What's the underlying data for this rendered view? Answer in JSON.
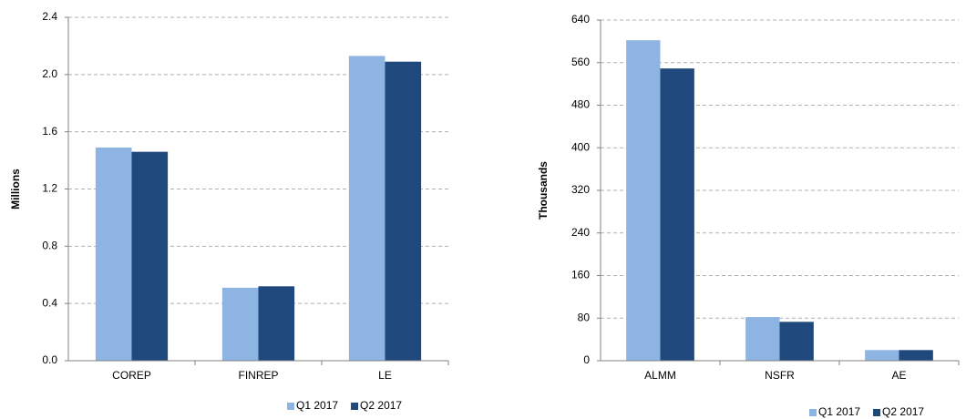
{
  "chart_data": [
    {
      "type": "bar",
      "y_label": "Millions",
      "categories": [
        "COREP",
        "FINREP",
        "LE"
      ],
      "series": [
        {
          "name": "Q1 2017",
          "color": "#8eb4e3",
          "values": [
            1.49,
            0.51,
            2.13
          ]
        },
        {
          "name": "Q2 2017",
          "color": "#1f497d",
          "values": [
            1.46,
            0.52,
            2.09
          ]
        }
      ],
      "ylim": [
        0,
        2.4
      ],
      "yticks": [
        {
          "value": 0,
          "label": "0.0"
        },
        0.4,
        0.8,
        1.2,
        1.6,
        {
          "value": 2,
          "label": "2.0"
        },
        2.4
      ],
      "grid": true
    },
    {
      "type": "bar",
      "y_label": "Thousands",
      "categories": [
        "ALMM",
        "NSFR",
        "AE"
      ],
      "series": [
        {
          "name": "Q1 2017",
          "color": "#8eb4e3",
          "values": [
            602,
            82,
            20
          ]
        },
        {
          "name": "Q2 2017",
          "color": "#1f497d",
          "values": [
            549,
            73,
            20
          ]
        }
      ],
      "ylim": [
        0,
        640
      ],
      "yticks": [
        0,
        80,
        160,
        240,
        320,
        400,
        480,
        560,
        640
      ],
      "grid": true
    }
  ]
}
